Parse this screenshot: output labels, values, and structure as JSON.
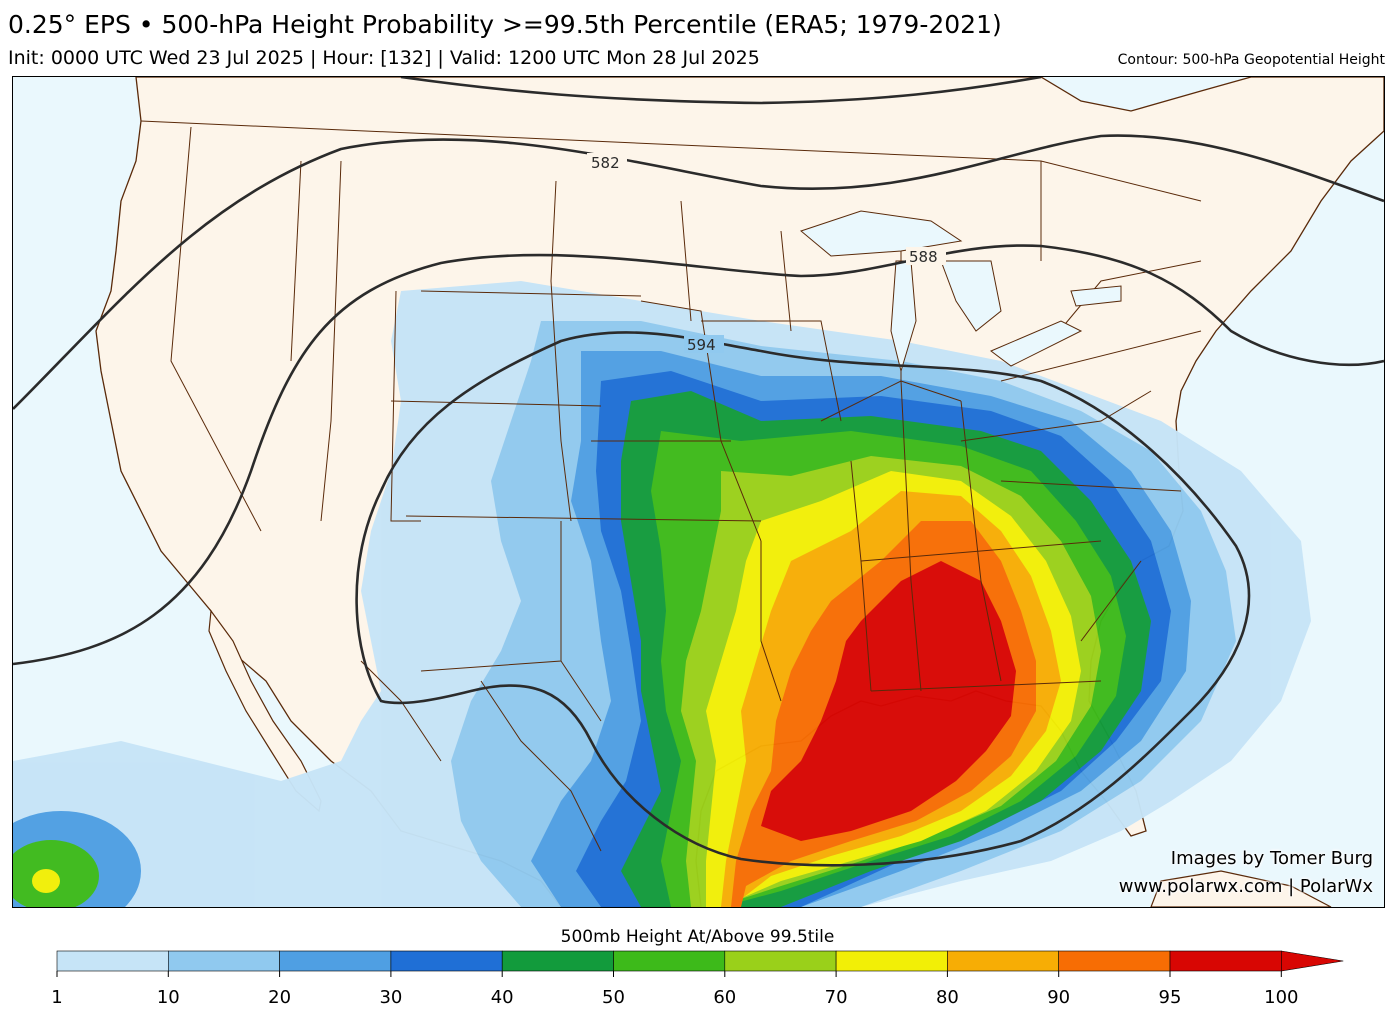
{
  "header": {
    "title": "0.25° EPS • 500-hPa Height Probability >=99.5th Percentile (ERA5; 1979-2021)",
    "subtitle": "Init: 0000 UTC Wed 23 Jul 2025 | Hour: [132] | Valid: 1200 UTC Mon 28 Jul 2025",
    "contour_note": "Contour: 500-hPa Geopotential Height"
  },
  "contours": {
    "labels": [
      "582",
      "588",
      "594"
    ]
  },
  "credits": {
    "line1": "Images by Tomer Burg",
    "line2": "www.polarwx.com | PolarWx"
  },
  "colorbar": {
    "title": "500mb Height At/Above 99.5tile",
    "ticks": [
      "1",
      "10",
      "20",
      "30",
      "40",
      "50",
      "60",
      "70",
      "80",
      "90",
      "95",
      "100"
    ],
    "colors": [
      "#c6e4f7",
      "#90c9ef",
      "#4f9fe3",
      "#1f6fd6",
      "#129b3c",
      "#3dba1a",
      "#9ad01a",
      "#f2ef06",
      "#f7ad05",
      "#f76d04",
      "#d80603"
    ]
  },
  "colors": {
    "ocean": "#eaf8fd",
    "land": "#fdf5ea",
    "border": "#5a2a0a",
    "contour": "#2b2b2b"
  }
}
